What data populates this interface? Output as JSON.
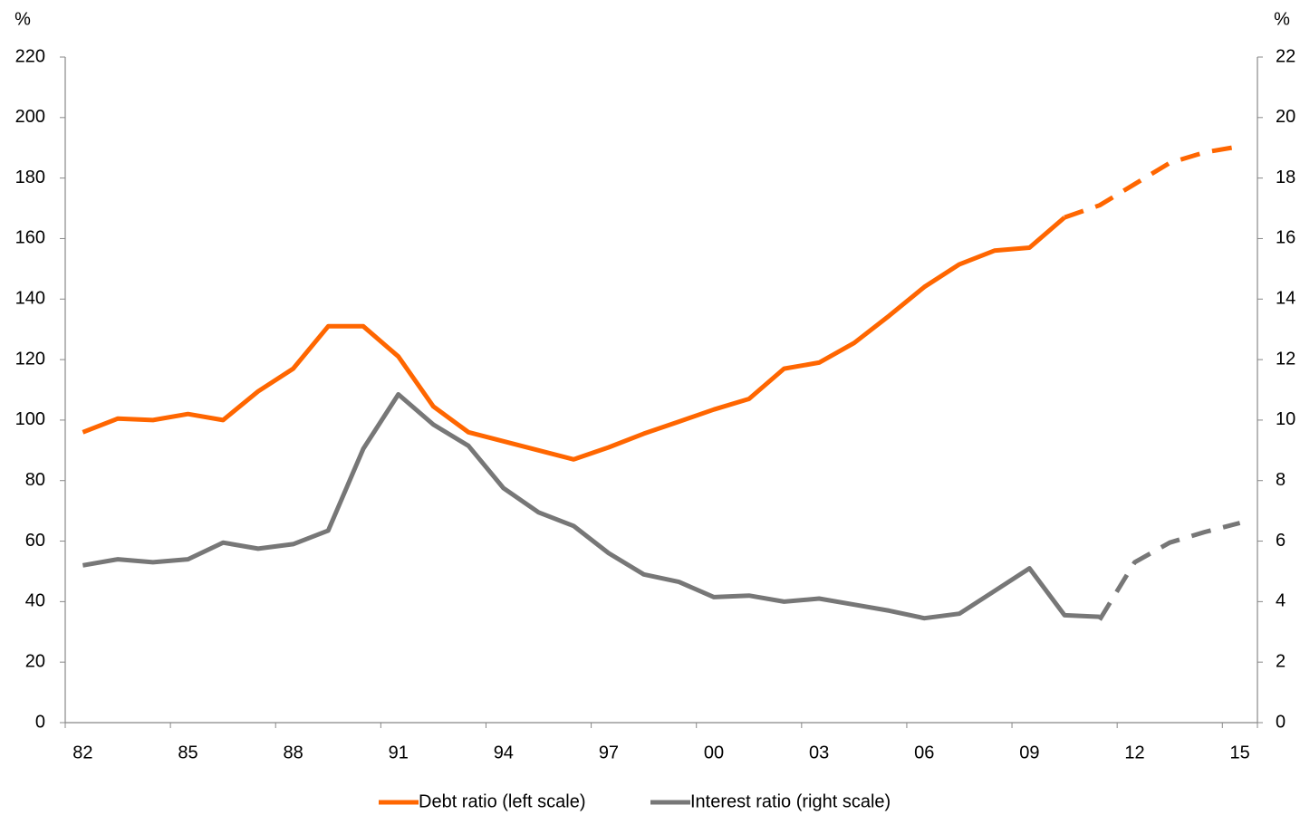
{
  "chart_data": {
    "type": "line",
    "y_label": "%",
    "y2_label": "%",
    "categories": [
      "82",
      null,
      null,
      "85",
      null,
      null,
      "88",
      null,
      null,
      "91",
      null,
      null,
      "94",
      null,
      null,
      "97",
      null,
      null,
      "00",
      null,
      null,
      "03",
      null,
      null,
      "06",
      null,
      null,
      "09",
      null,
      null,
      "12",
      null,
      null,
      "15"
    ],
    "ylim": [
      0,
      220
    ],
    "yticks": [
      0,
      20,
      40,
      60,
      80,
      100,
      120,
      140,
      160,
      180,
      200,
      220
    ],
    "y2lim": [
      0,
      22
    ],
    "y2ticks": [
      0,
      2,
      4,
      6,
      8,
      10,
      12,
      14,
      16,
      18,
      20,
      22
    ],
    "grid": false,
    "legend": "bottom",
    "series": [
      {
        "name": "Debt ratio (left scale)",
        "color": "#ff6600",
        "axis": "y",
        "values": [
          96,
          100.5,
          100,
          102,
          100,
          109.5,
          117,
          131,
          131,
          121,
          104.5,
          96,
          93,
          90,
          87,
          91,
          95.5,
          99.5,
          103.5,
          107,
          117,
          119,
          125.5,
          134.5,
          144,
          151.5,
          156,
          157,
          167,
          null,
          null,
          null,
          null,
          null
        ],
        "forecast": [
          null,
          null,
          null,
          null,
          null,
          null,
          null,
          null,
          null,
          null,
          null,
          null,
          null,
          null,
          null,
          null,
          null,
          null,
          null,
          null,
          null,
          null,
          null,
          null,
          null,
          null,
          null,
          null,
          167,
          171,
          178,
          185,
          188.5,
          190.5
        ]
      },
      {
        "name": "Interest ratio (right scale)",
        "color": "#777777",
        "axis": "y2",
        "values": [
          5.2,
          5.4,
          5.3,
          5.4,
          5.95,
          5.75,
          5.9,
          6.35,
          9.05,
          10.85,
          9.85,
          9.15,
          7.75,
          6.95,
          6.5,
          5.6,
          4.9,
          4.65,
          4.15,
          4.2,
          4.0,
          4.1,
          3.9,
          3.7,
          3.45,
          3.6,
          4.35,
          5.1,
          3.55,
          3.5,
          null,
          null,
          null,
          null
        ],
        "forecast": [
          null,
          null,
          null,
          null,
          null,
          null,
          null,
          null,
          null,
          null,
          null,
          null,
          null,
          null,
          null,
          null,
          null,
          null,
          null,
          null,
          null,
          null,
          null,
          null,
          null,
          null,
          null,
          null,
          null,
          3.4,
          5.3,
          5.95,
          6.3,
          6.6
        ]
      }
    ]
  }
}
